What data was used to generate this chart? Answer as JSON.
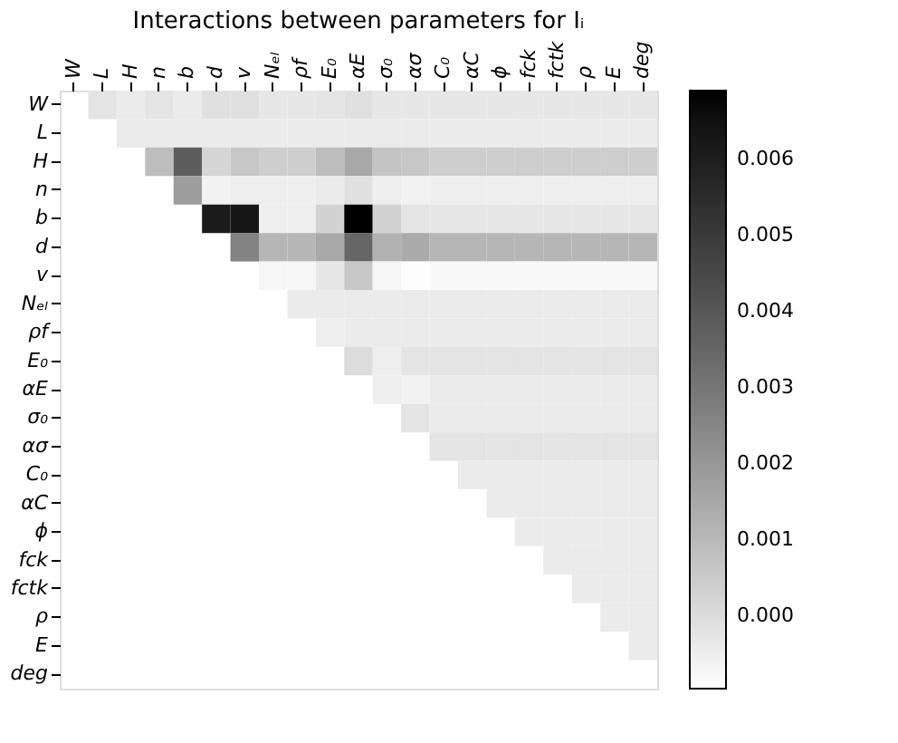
{
  "chart_data": {
    "type": "heatmap",
    "title": "Interactions between parameters for Iᵢ",
    "categories": [
      "W",
      "L",
      "H",
      "n",
      "b",
      "d",
      "v",
      "Nₑₗ",
      "ρf",
      "E₀",
      "αE",
      "σ₀",
      "ασ",
      "C₀",
      "αC",
      "ϕ",
      "fck",
      "fctk",
      "ρ",
      "E",
      "deg"
    ],
    "y_categories": [
      "W",
      "L",
      "H",
      "n",
      "b",
      "d",
      "v",
      "Nₑₗ",
      "ρf",
      "E₀",
      "αE",
      "σ₀",
      "ασ",
      "C₀",
      "αC",
      "ϕ",
      "fck",
      "fctk",
      "ρ",
      "E",
      "deg"
    ],
    "cells": [
      [
        null,
        -0.0002,
        -0.0004,
        -0.0002,
        -0.0004,
        -0.0001,
        -0.0001,
        -0.0003,
        -0.0003,
        -0.0002,
        -0.0001,
        -0.0003,
        -0.0003,
        -0.0003,
        -0.0003,
        -0.0003,
        -0.0003,
        -0.0003,
        -0.0003,
        -0.0003,
        -0.0003
      ],
      [
        null,
        null,
        -0.0004,
        -0.0004,
        -0.0004,
        -0.0004,
        -0.0004,
        -0.0004,
        -0.0004,
        -0.0004,
        -0.0004,
        -0.0004,
        -0.0004,
        -0.0004,
        -0.0004,
        -0.0004,
        -0.0004,
        -0.0004,
        -0.0004,
        -0.0004,
        -0.0004
      ],
      [
        null,
        null,
        null,
        0.0009,
        0.0038,
        0.0002,
        0.0006,
        0.0004,
        0.0004,
        0.0009,
        0.0015,
        0.0007,
        0.0006,
        0.0004,
        0.0004,
        0.0004,
        0.0004,
        0.0004,
        0.0004,
        0.0004,
        0.0004
      ],
      [
        null,
        null,
        null,
        null,
        0.0018,
        -0.0006,
        -0.0005,
        -0.0005,
        -0.0005,
        -0.0004,
        -0.0001,
        -0.0005,
        -0.0006,
        -0.0005,
        -0.0005,
        -0.0005,
        -0.0005,
        -0.0005,
        -0.0005,
        -0.0005,
        -0.0005
      ],
      [
        null,
        null,
        null,
        null,
        null,
        0.0061,
        0.0063,
        -0.0005,
        -0.0005,
        0.0003,
        0.0069,
        0.0003,
        -0.0002,
        -0.0003,
        -0.0003,
        -0.0003,
        -0.0003,
        -0.0003,
        -0.0003,
        -0.0003,
        -0.0003
      ],
      [
        null,
        null,
        null,
        null,
        null,
        null,
        0.0026,
        0.0011,
        0.0011,
        0.0015,
        0.0035,
        0.0012,
        0.0014,
        0.0011,
        0.0011,
        0.0011,
        0.0011,
        0.0011,
        0.0011,
        0.0011,
        0.0011
      ],
      [
        null,
        null,
        null,
        null,
        null,
        null,
        null,
        -0.0007,
        -0.0007,
        -0.0003,
        0.0006,
        -0.0007,
        -0.0009,
        -0.0008,
        -0.0008,
        -0.0008,
        -0.0008,
        -0.0008,
        -0.0008,
        -0.0008,
        -0.0008
      ],
      [
        null,
        null,
        null,
        null,
        null,
        null,
        null,
        null,
        -0.0004,
        -0.0004,
        -0.0004,
        -0.0004,
        -0.0004,
        -0.0004,
        -0.0004,
        -0.0004,
        -0.0004,
        -0.0004,
        -0.0004,
        -0.0004,
        -0.0004
      ],
      [
        null,
        null,
        null,
        null,
        null,
        null,
        null,
        null,
        null,
        -0.0005,
        -0.0004,
        -0.0004,
        -0.0004,
        -0.0004,
        -0.0004,
        -0.0004,
        -0.0004,
        -0.0004,
        -0.0004,
        -0.0004,
        -0.0004
      ],
      [
        null,
        null,
        null,
        null,
        null,
        null,
        null,
        null,
        null,
        null,
        0.0,
        -0.0005,
        -0.0002,
        -0.0002,
        -0.0002,
        -0.0002,
        -0.0002,
        -0.0002,
        -0.0002,
        -0.0002,
        -0.0002
      ],
      [
        null,
        null,
        null,
        null,
        null,
        null,
        null,
        null,
        null,
        null,
        null,
        -0.0005,
        -0.0006,
        -0.0004,
        -0.0004,
        -0.0004,
        -0.0004,
        -0.0004,
        -0.0004,
        -0.0004,
        -0.0004
      ],
      [
        null,
        null,
        null,
        null,
        null,
        null,
        null,
        null,
        null,
        null,
        null,
        null,
        -0.0002,
        -0.0004,
        -0.0004,
        -0.0004,
        -0.0004,
        -0.0004,
        -0.0004,
        -0.0004,
        -0.0004
      ],
      [
        null,
        null,
        null,
        null,
        null,
        null,
        null,
        null,
        null,
        null,
        null,
        null,
        null,
        -0.0002,
        -0.0002,
        -0.0002,
        -0.0002,
        -0.0002,
        -0.0002,
        -0.0002,
        -0.0002
      ],
      [
        null,
        null,
        null,
        null,
        null,
        null,
        null,
        null,
        null,
        null,
        null,
        null,
        null,
        null,
        -0.0004,
        -0.0004,
        -0.0004,
        -0.0004,
        -0.0004,
        -0.0004,
        -0.0004
      ],
      [
        null,
        null,
        null,
        null,
        null,
        null,
        null,
        null,
        null,
        null,
        null,
        null,
        null,
        null,
        null,
        -0.0004,
        -0.0004,
        -0.0004,
        -0.0004,
        -0.0004,
        -0.0004
      ],
      [
        null,
        null,
        null,
        null,
        null,
        null,
        null,
        null,
        null,
        null,
        null,
        null,
        null,
        null,
        null,
        null,
        -0.0004,
        -0.0004,
        -0.0004,
        -0.0004,
        -0.0004
      ],
      [
        null,
        null,
        null,
        null,
        null,
        null,
        null,
        null,
        null,
        null,
        null,
        null,
        null,
        null,
        null,
        null,
        null,
        -0.0004,
        -0.0004,
        -0.0004,
        -0.0004
      ],
      [
        null,
        null,
        null,
        null,
        null,
        null,
        null,
        null,
        null,
        null,
        null,
        null,
        null,
        null,
        null,
        null,
        null,
        null,
        -0.0004,
        -0.0004,
        -0.0004
      ],
      [
        null,
        null,
        null,
        null,
        null,
        null,
        null,
        null,
        null,
        null,
        null,
        null,
        null,
        null,
        null,
        null,
        null,
        null,
        null,
        -0.0004,
        -0.0004
      ],
      [
        null,
        null,
        null,
        null,
        null,
        null,
        null,
        null,
        null,
        null,
        null,
        null,
        null,
        null,
        null,
        null,
        null,
        null,
        null,
        null,
        -0.0004
      ],
      [
        null,
        null,
        null,
        null,
        null,
        null,
        null,
        null,
        null,
        null,
        null,
        null,
        null,
        null,
        null,
        null,
        null,
        null,
        null,
        null,
        null
      ]
    ],
    "clim": [
      -0.00095,
      0.0069
    ],
    "cticks": [
      {
        "value": 0,
        "label": "0.000"
      },
      0.001,
      0.002,
      0.003,
      0.004,
      0.005,
      0.006
    ],
    "grid": false
  }
}
